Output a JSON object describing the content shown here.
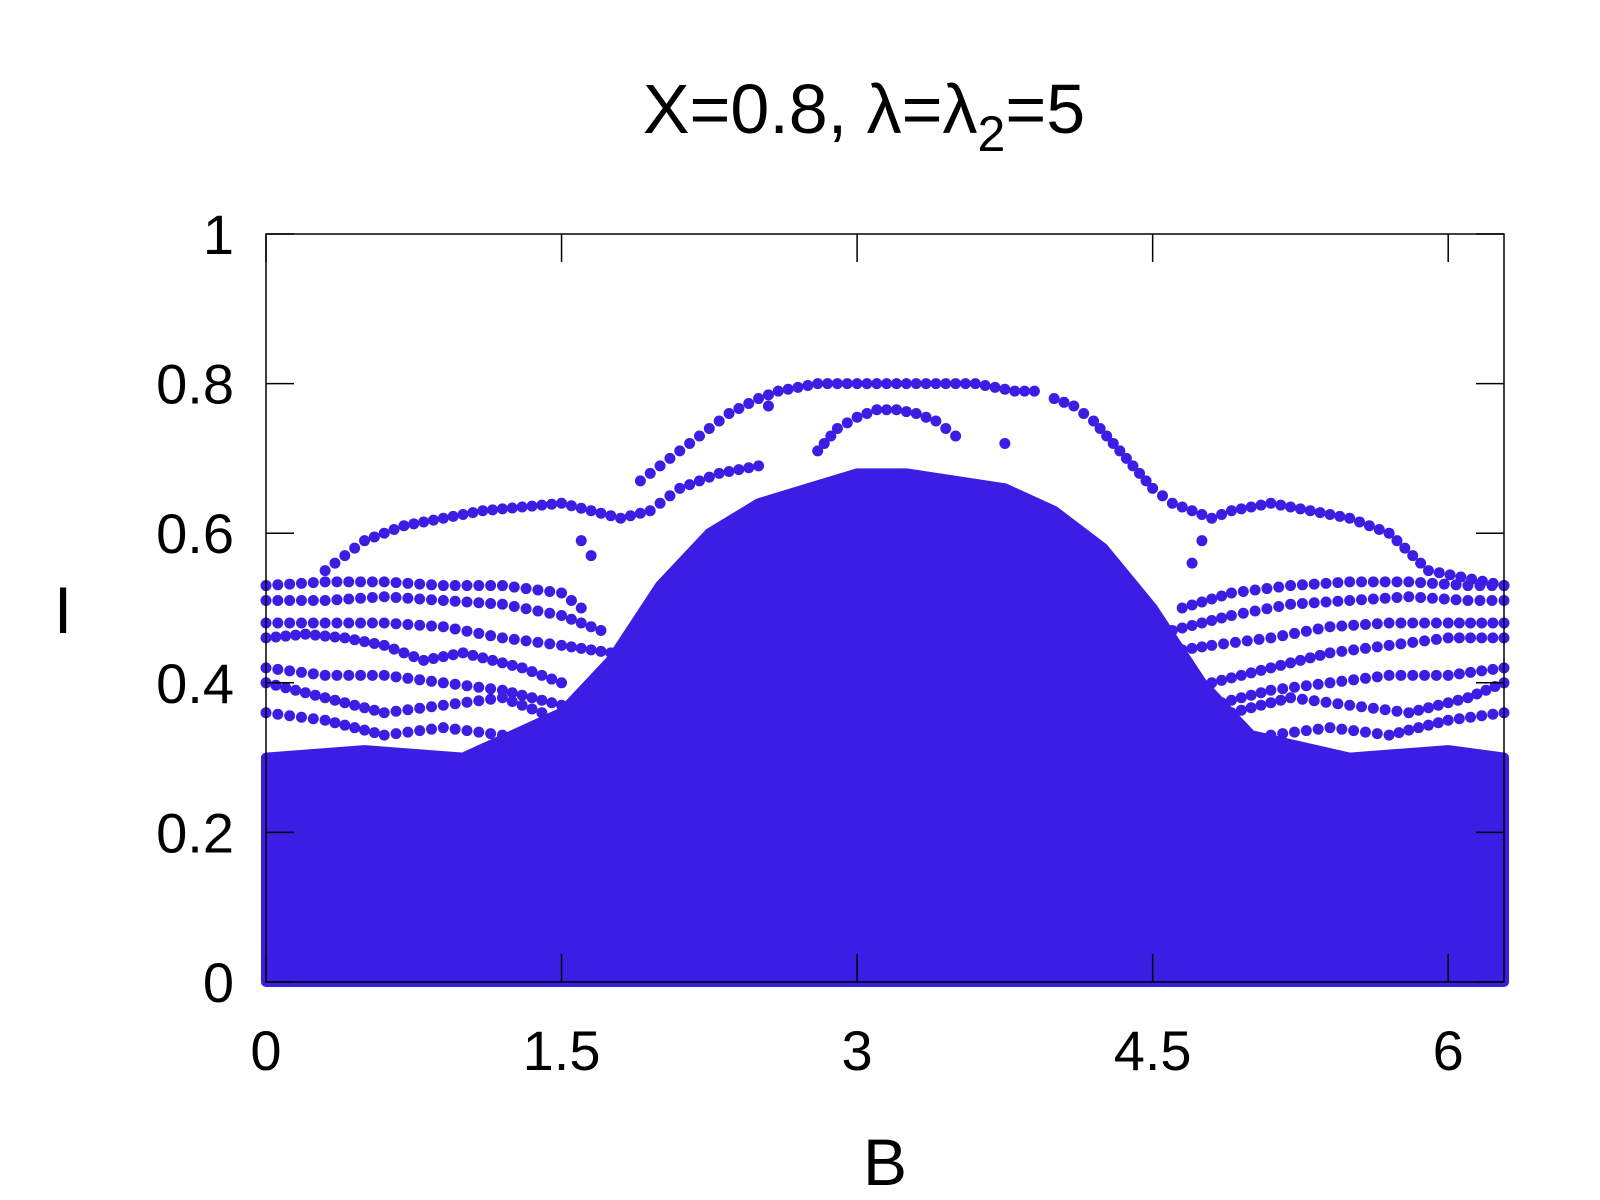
{
  "chart_data": {
    "type": "scatter",
    "title": "X=0.8, λ=λ",
    "title_subscript": "2",
    "title_suffix": "=5",
    "xlabel": "B",
    "ylabel": "I",
    "xlim": [
      0,
      6.2832
    ],
    "ylim": [
      0,
      1
    ],
    "xticks": [
      "0",
      "1.5",
      "3",
      "4.5",
      "6"
    ],
    "yticks": [
      "0",
      "0.2",
      "0.4",
      "0.6",
      "0.8",
      "1"
    ],
    "xtick_values": [
      0,
      1.5,
      3,
      4.5,
      6
    ],
    "ytick_values": [
      0,
      0.2,
      0.4,
      0.6,
      0.8,
      1
    ],
    "grid": false,
    "marker_color": "#3b1ee3",
    "envelope": {
      "B": [
        0,
        0.5,
        1.0,
        1.5,
        1.75,
        2.0,
        2.25,
        2.5,
        2.75,
        3.0,
        3.1416,
        3.25,
        3.5,
        3.75,
        4.0,
        4.25,
        4.5,
        4.75,
        5.0,
        5.5,
        6.0,
        6.2832
      ],
      "I_max": [
        0.3,
        0.31,
        0.3,
        0.36,
        0.43,
        0.53,
        0.6,
        0.64,
        0.66,
        0.68,
        0.68,
        0.68,
        0.67,
        0.66,
        0.63,
        0.58,
        0.5,
        0.4,
        0.33,
        0.3,
        0.31,
        0.3
      ]
    },
    "branches": [
      {
        "B": [
          0,
          0.3,
          0.6,
          0.9,
          1.2,
          1.5,
          1.6
        ],
        "I": [
          0.53,
          0.535,
          0.535,
          0.53,
          0.53,
          0.52,
          0.5
        ]
      },
      {
        "B": [
          0,
          0.3,
          0.6,
          0.9,
          1.2,
          1.5,
          1.7
        ],
        "I": [
          0.51,
          0.51,
          0.515,
          0.51,
          0.505,
          0.49,
          0.47
        ]
      },
      {
        "B": [
          0,
          0.3,
          0.6,
          0.9,
          1.2,
          1.5,
          1.75
        ],
        "I": [
          0.48,
          0.48,
          0.48,
          0.475,
          0.46,
          0.45,
          0.44
        ]
      },
      {
        "B": [
          0,
          0.2,
          0.4,
          0.6,
          0.8,
          1.0,
          1.3,
          1.5
        ],
        "I": [
          0.46,
          0.465,
          0.46,
          0.45,
          0.43,
          0.44,
          0.42,
          0.4
        ]
      },
      {
        "B": [
          0,
          0.3,
          0.6,
          0.9,
          1.2,
          1.5
        ],
        "I": [
          0.42,
          0.41,
          0.41,
          0.4,
          0.39,
          0.37
        ]
      },
      {
        "B": [
          0,
          0.3,
          0.6,
          0.9,
          1.2,
          1.4
        ],
        "I": [
          0.4,
          0.38,
          0.36,
          0.37,
          0.38,
          0.36
        ]
      },
      {
        "B": [
          0,
          0.3,
          0.6,
          0.9,
          1.2
        ],
        "I": [
          0.36,
          0.35,
          0.33,
          0.34,
          0.33
        ]
      },
      {
        "B": [
          0.3,
          0.5,
          0.7,
          0.9,
          1.1,
          1.3,
          1.5,
          1.65,
          1.8,
          1.95,
          2.1,
          2.3,
          2.5
        ],
        "I": [
          0.55,
          0.59,
          0.61,
          0.62,
          0.63,
          0.635,
          0.64,
          0.63,
          0.62,
          0.63,
          0.66,
          0.68,
          0.69
        ]
      },
      {
        "B": [
          1.9,
          2.0,
          2.1,
          2.2,
          2.35,
          2.5,
          2.6,
          2.7,
          2.8,
          2.9,
          3.0,
          3.1,
          3.2,
          3.3,
          3.4,
          3.5,
          3.6,
          3.7,
          3.8,
          3.9
        ],
        "I": [
          0.67,
          0.69,
          0.71,
          0.73,
          0.76,
          0.78,
          0.79,
          0.795,
          0.8,
          0.8,
          0.8,
          0.8,
          0.8,
          0.8,
          0.8,
          0.8,
          0.8,
          0.795,
          0.79,
          0.79
        ]
      },
      {
        "B": [
          4.0,
          4.1,
          4.2,
          4.3,
          4.4,
          4.5,
          4.6,
          4.7,
          4.8,
          4.9,
          5.1,
          5.3,
          5.5,
          5.7,
          5.9,
          6.2832
        ],
        "I": [
          0.78,
          0.77,
          0.75,
          0.72,
          0.69,
          0.66,
          0.64,
          0.63,
          0.62,
          0.63,
          0.64,
          0.63,
          0.62,
          0.6,
          0.55,
          0.53
        ]
      },
      {
        "B": [
          2.8,
          2.9,
          3.0,
          3.1,
          3.2,
          3.3,
          3.4,
          3.5
        ],
        "I": [
          0.71,
          0.74,
          0.755,
          0.765,
          0.765,
          0.76,
          0.75,
          0.73
        ]
      },
      {
        "B": [
          4.65,
          4.9,
          5.2,
          5.5,
          5.8,
          6.1,
          6.2832
        ],
        "I": [
          0.5,
          0.52,
          0.53,
          0.535,
          0.535,
          0.53,
          0.53
        ]
      },
      {
        "B": [
          4.6,
          4.9,
          5.2,
          5.5,
          5.8,
          6.1,
          6.2832
        ],
        "I": [
          0.47,
          0.49,
          0.505,
          0.51,
          0.515,
          0.51,
          0.51
        ]
      },
      {
        "B": [
          4.55,
          4.8,
          5.1,
          5.4,
          5.7,
          6.0,
          6.2832
        ],
        "I": [
          0.44,
          0.45,
          0.46,
          0.475,
          0.48,
          0.48,
          0.48
        ]
      },
      {
        "B": [
          4.8,
          5.1,
          5.4,
          5.7,
          6.0,
          6.2832
        ],
        "I": [
          0.4,
          0.42,
          0.44,
          0.45,
          0.46,
          0.46
        ]
      },
      {
        "B": [
          4.8,
          5.1,
          5.4,
          5.7,
          6.0,
          6.2832
        ],
        "I": [
          0.37,
          0.39,
          0.4,
          0.41,
          0.41,
          0.42
        ]
      },
      {
        "B": [
          4.9,
          5.2,
          5.5,
          5.8,
          6.1,
          6.2832
        ],
        "I": [
          0.36,
          0.38,
          0.37,
          0.36,
          0.38,
          0.4
        ]
      },
      {
        "B": [
          5.1,
          5.4,
          5.7,
          6.0,
          6.2832
        ],
        "I": [
          0.33,
          0.34,
          0.33,
          0.35,
          0.36
        ]
      }
    ],
    "outliers": [
      {
        "B": 2.55,
        "I": 0.77
      },
      {
        "B": 3.75,
        "I": 0.72
      },
      {
        "B": 1.65,
        "I": 0.57
      },
      {
        "B": 1.6,
        "I": 0.59
      },
      {
        "B": 4.7,
        "I": 0.56
      },
      {
        "B": 4.75,
        "I": 0.59
      }
    ]
  }
}
